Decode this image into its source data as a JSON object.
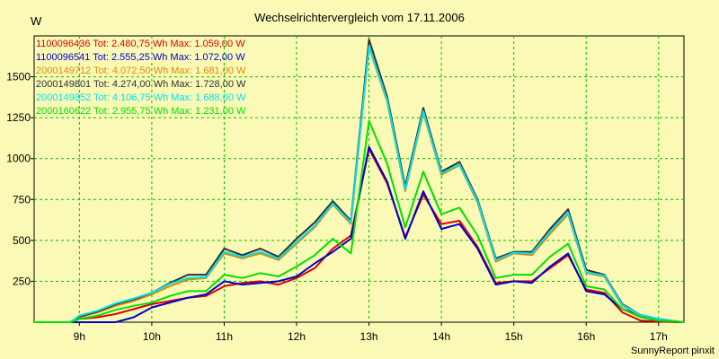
{
  "chart_data": {
    "type": "line",
    "title": "Wechselrichtervergleich vom 17.11.2006",
    "ylabel": "W",
    "xlabel": "",
    "footer": "SunnyReport pinxit",
    "x_range_hours": [
      8.375,
      17.35
    ],
    "ylim": [
      0,
      1750
    ],
    "y_ticks": [
      250,
      500,
      750,
      1000,
      1250,
      1500
    ],
    "x_ticks": [
      {
        "hour": 9,
        "label": "9h"
      },
      {
        "hour": 10,
        "label": "10h"
      },
      {
        "hour": 11,
        "label": "11h"
      },
      {
        "hour": 12,
        "label": "12h"
      },
      {
        "hour": 13,
        "label": "13h"
      },
      {
        "hour": 14,
        "label": "14h"
      },
      {
        "hour": 15,
        "label": "15h"
      },
      {
        "hour": 16,
        "label": "16h"
      },
      {
        "hour": 17,
        "label": "17h"
      }
    ],
    "grid": true,
    "legend_placement": "top-left",
    "x": [
      8.375,
      8.625,
      8.875,
      9.0,
      9.25,
      9.5,
      9.75,
      10.0,
      10.25,
      10.5,
      10.75,
      11.0,
      11.25,
      11.5,
      11.75,
      12.0,
      12.25,
      12.5,
      12.75,
      13.0,
      13.25,
      13.5,
      13.75,
      14.0,
      14.25,
      14.5,
      14.75,
      15.0,
      15.25,
      15.5,
      15.75,
      16.0,
      16.25,
      16.5,
      16.75,
      17.0,
      17.25,
      17.35
    ],
    "series": [
      {
        "name": "1100096436 Tot: 2.480,75 Wh Max: 1.059,00 W",
        "color": "#e00000",
        "values": [
          0,
          0,
          0,
          20,
          30,
          50,
          80,
          110,
          130,
          150,
          160,
          220,
          240,
          250,
          230,
          270,
          330,
          450,
          530,
          1059,
          850,
          520,
          780,
          600,
          620,
          460,
          240,
          250,
          250,
          330,
          410,
          200,
          180,
          60,
          10,
          5,
          0,
          0
        ]
      },
      {
        "name": "1100096541 Tot: 2.555,25 Wh Max: 1.072,00 W",
        "color": "#0000d0",
        "values": [
          0,
          0,
          0,
          0,
          0,
          0,
          30,
          90,
          120,
          150,
          170,
          250,
          230,
          240,
          250,
          280,
          360,
          430,
          510,
          1072,
          860,
          510,
          800,
          570,
          600,
          450,
          230,
          250,
          240,
          340,
          420,
          190,
          170,
          80,
          40,
          15,
          5,
          0
        ]
      },
      {
        "name": "2000149712 Tot: 4.072,50 Wh Max: 1.681,00 W",
        "color": "#e08a00",
        "values": [
          0,
          0,
          0,
          30,
          60,
          100,
          130,
          170,
          220,
          260,
          270,
          420,
          390,
          420,
          380,
          480,
          580,
          720,
          600,
          1681,
          1350,
          800,
          1280,
          900,
          960,
          730,
          370,
          420,
          410,
          540,
          660,
          300,
          280,
          100,
          40,
          15,
          5,
          0
        ]
      },
      {
        "name": "2000149801 Tot: 4.274,00 Wh Max: 1.728,00 W",
        "color": "#303030",
        "values": [
          0,
          0,
          0,
          35,
          65,
          110,
          140,
          180,
          240,
          290,
          290,
          450,
          410,
          450,
          400,
          510,
          610,
          740,
          620,
          1728,
          1380,
          830,
          1310,
          920,
          980,
          750,
          390,
          430,
          430,
          570,
          690,
          320,
          290,
          110,
          45,
          20,
          5,
          0
        ]
      },
      {
        "name": "2000149852 Tot: 4.106,75 Wh Max: 1.688,00 W",
        "color": "#00e0f0",
        "values": [
          0,
          0,
          0,
          40,
          70,
          115,
          145,
          180,
          235,
          270,
          275,
          430,
          400,
          430,
          390,
          490,
          590,
          725,
          610,
          1688,
          1360,
          810,
          1290,
          910,
          965,
          740,
          380,
          425,
          420,
          555,
          670,
          305,
          285,
          105,
          45,
          20,
          5,
          0
        ]
      },
      {
        "name": "2000160622 Tot: 2.955,75 Wh Max: 1.231,00 W",
        "color": "#00e000",
        "values": [
          0,
          0,
          0,
          20,
          40,
          75,
          100,
          120,
          160,
          190,
          190,
          290,
          270,
          300,
          280,
          340,
          410,
          510,
          420,
          1231,
          970,
          580,
          920,
          660,
          700,
          530,
          270,
          290,
          290,
          400,
          480,
          220,
          200,
          80,
          30,
          10,
          5,
          0
        ]
      }
    ]
  }
}
